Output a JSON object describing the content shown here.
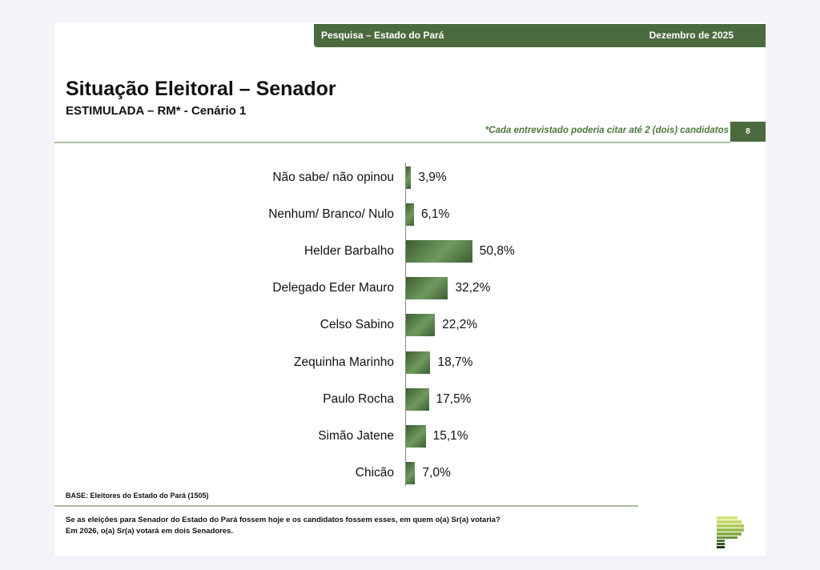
{
  "header": {
    "left": "Pesquisa – Estado do Pará",
    "right": "Dezembro de 2025"
  },
  "title": "Situação Eleitoral – Senador",
  "subtitle": "ESTIMULADA – RM* - Cenário 1",
  "note": "*Cada entrevistado poderia citar até 2 (dois) candidatos",
  "page_number": "8",
  "base": "BASE: Eleitores do Estado do Pará (1505)",
  "question": [
    "Se as eleições para Senador do Estado do Pará fossem hoje e os candidatos fossem esses, em quem o(a) Sr(a) votaria?",
    "Em 2026, o(a) Sr(a) votará em dois Senadores."
  ],
  "colors": {
    "bar": "#4b6a3d",
    "accent": "#4b6a3d"
  },
  "chart_data": {
    "type": "bar",
    "orientation": "horizontal",
    "title": "Situação Eleitoral – Senador",
    "xlabel": "",
    "ylabel": "",
    "xlim": [
      0,
      100
    ],
    "categories": [
      "Não sabe/ não opinou",
      "Nenhum/ Branco/ Nulo",
      "Helder Barbalho",
      "Delegado Eder Mauro",
      "Celso Sabino",
      "Zequinha Marinho",
      "Paulo Rocha",
      "Simão Jatene",
      "Chicão"
    ],
    "values": [
      3.9,
      6.1,
      50.8,
      32.2,
      22.2,
      18.7,
      17.5,
      15.1,
      7.0
    ],
    "value_labels": [
      "3,9%",
      "6,1%",
      "50,8%",
      "32,2%",
      "22,2%",
      "18,7%",
      "17,5%",
      "15,1%",
      "7,0%"
    ]
  }
}
